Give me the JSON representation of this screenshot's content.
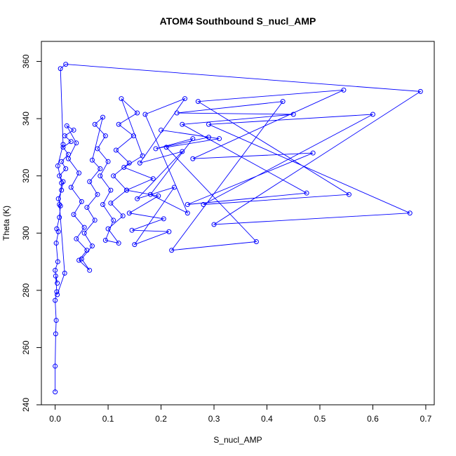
{
  "chart_data": {
    "type": "line",
    "title": "ATOM4 Southbound S_nucl_AMP",
    "xlabel": "S_nucl_AMP",
    "ylabel": "Theta (K)",
    "xlim": [
      -0.026,
      0.716
    ],
    "ylim": [
      240,
      367
    ],
    "xticks": [
      0.0,
      0.1,
      0.2,
      0.3,
      0.4,
      0.5,
      0.6,
      0.7
    ],
    "xtick_labels": [
      "0.0",
      "0.1",
      "0.2",
      "0.3",
      "0.4",
      "0.5",
      "0.6",
      "0.7"
    ],
    "yticks": [
      240,
      260,
      280,
      300,
      320,
      340,
      360
    ],
    "ytick_labels": [
      "240",
      "260",
      "280",
      "300",
      "320",
      "340",
      "360"
    ],
    "grid": false,
    "series": [
      {
        "color": "#0000ff",
        "marker": "open-circle",
        "x": [
          0.0,
          0.0,
          0.001,
          0.002,
          0.0,
          0.003,
          0.001,
          0.004,
          0.0,
          0.005,
          0.002,
          0.006,
          0.003,
          0.008,
          0.01,
          0.006,
          0.012,
          0.015,
          0.008,
          0.02,
          0.012,
          0.025,
          0.015,
          0.03,
          0.018,
          0.035,
          0.022,
          0.04,
          0.025,
          0.045,
          0.03,
          0.05,
          0.035,
          0.055,
          0.04,
          0.06,
          0.045,
          0.065,
          0.05,
          0.07,
          0.055,
          0.075,
          0.06,
          0.08,
          0.065,
          0.085,
          0.07,
          0.09,
          0.075,
          0.095,
          0.08,
          0.1,
          0.085,
          0.105,
          0.09,
          0.11,
          0.095,
          0.12,
          0.1,
          0.128,
          0.105,
          0.135,
          0.11,
          0.14,
          0.115,
          0.148,
          0.12,
          0.155,
          0.125,
          0.165,
          0.13,
          0.185,
          0.135,
          0.195,
          0.14,
          0.205,
          0.145,
          0.215,
          0.15,
          0.225,
          0.155,
          0.24,
          0.16,
          0.245,
          0.17,
          0.25,
          0.18,
          0.26,
          0.19,
          0.29,
          0.2,
          0.31,
          0.21,
          0.38,
          0.22,
          0.43,
          0.23,
          0.45,
          0.24,
          0.475,
          0.25,
          0.487,
          0.26,
          0.545,
          0.27,
          0.555,
          0.28,
          0.6,
          0.29,
          0.67,
          0.3,
          0.69,
          0.02,
          0.01,
          0.015,
          0.005,
          0.012,
          0.008,
          0.018,
          0.004
        ],
        "y": [
          244.5,
          253.5,
          264.8,
          269.5,
          276.5,
          279.5,
          285.0,
          282.5,
          287.0,
          290.0,
          296.5,
          300.5,
          301.5,
          305.5,
          309.5,
          312.0,
          315.0,
          318.0,
          320.0,
          322.5,
          325.0,
          327.5,
          330.0,
          332.0,
          334.0,
          336.0,
          337.5,
          331.5,
          326.0,
          321.0,
          316.0,
          311.0,
          306.5,
          302.0,
          298.0,
          294.0,
          290.5,
          287.0,
          291.0,
          295.5,
          300.0,
          304.5,
          309.0,
          313.5,
          318.0,
          322.5,
          325.5,
          340.5,
          338.0,
          334.0,
          329.5,
          325.0,
          320.0,
          315.0,
          310.0,
          304.5,
          297.5,
          296.5,
          301.5,
          306.0,
          310.5,
          315.0,
          320.0,
          324.5,
          329.0,
          334.0,
          338.0,
          342.0,
          347.0,
          327.0,
          323.0,
          319.0,
          315.0,
          313.0,
          307.0,
          305.0,
          301.0,
          300.5,
          296.0,
          316.0,
          312.0,
          328.5,
          324.5,
          347.0,
          341.5,
          307.0,
          313.5,
          333.0,
          329.5,
          333.5,
          336.0,
          333.0,
          330.0,
          297.0,
          294.0,
          346.0,
          342.0,
          341.5,
          338.0,
          314.0,
          310.0,
          328.0,
          326.0,
          350.0,
          346.0,
          313.5,
          310.0,
          341.5,
          338.0,
          307.0,
          303.0,
          349.5,
          359.0,
          357.5,
          331.0,
          323.5,
          317.5,
          310.0,
          286.0,
          278.5
        ]
      }
    ]
  }
}
